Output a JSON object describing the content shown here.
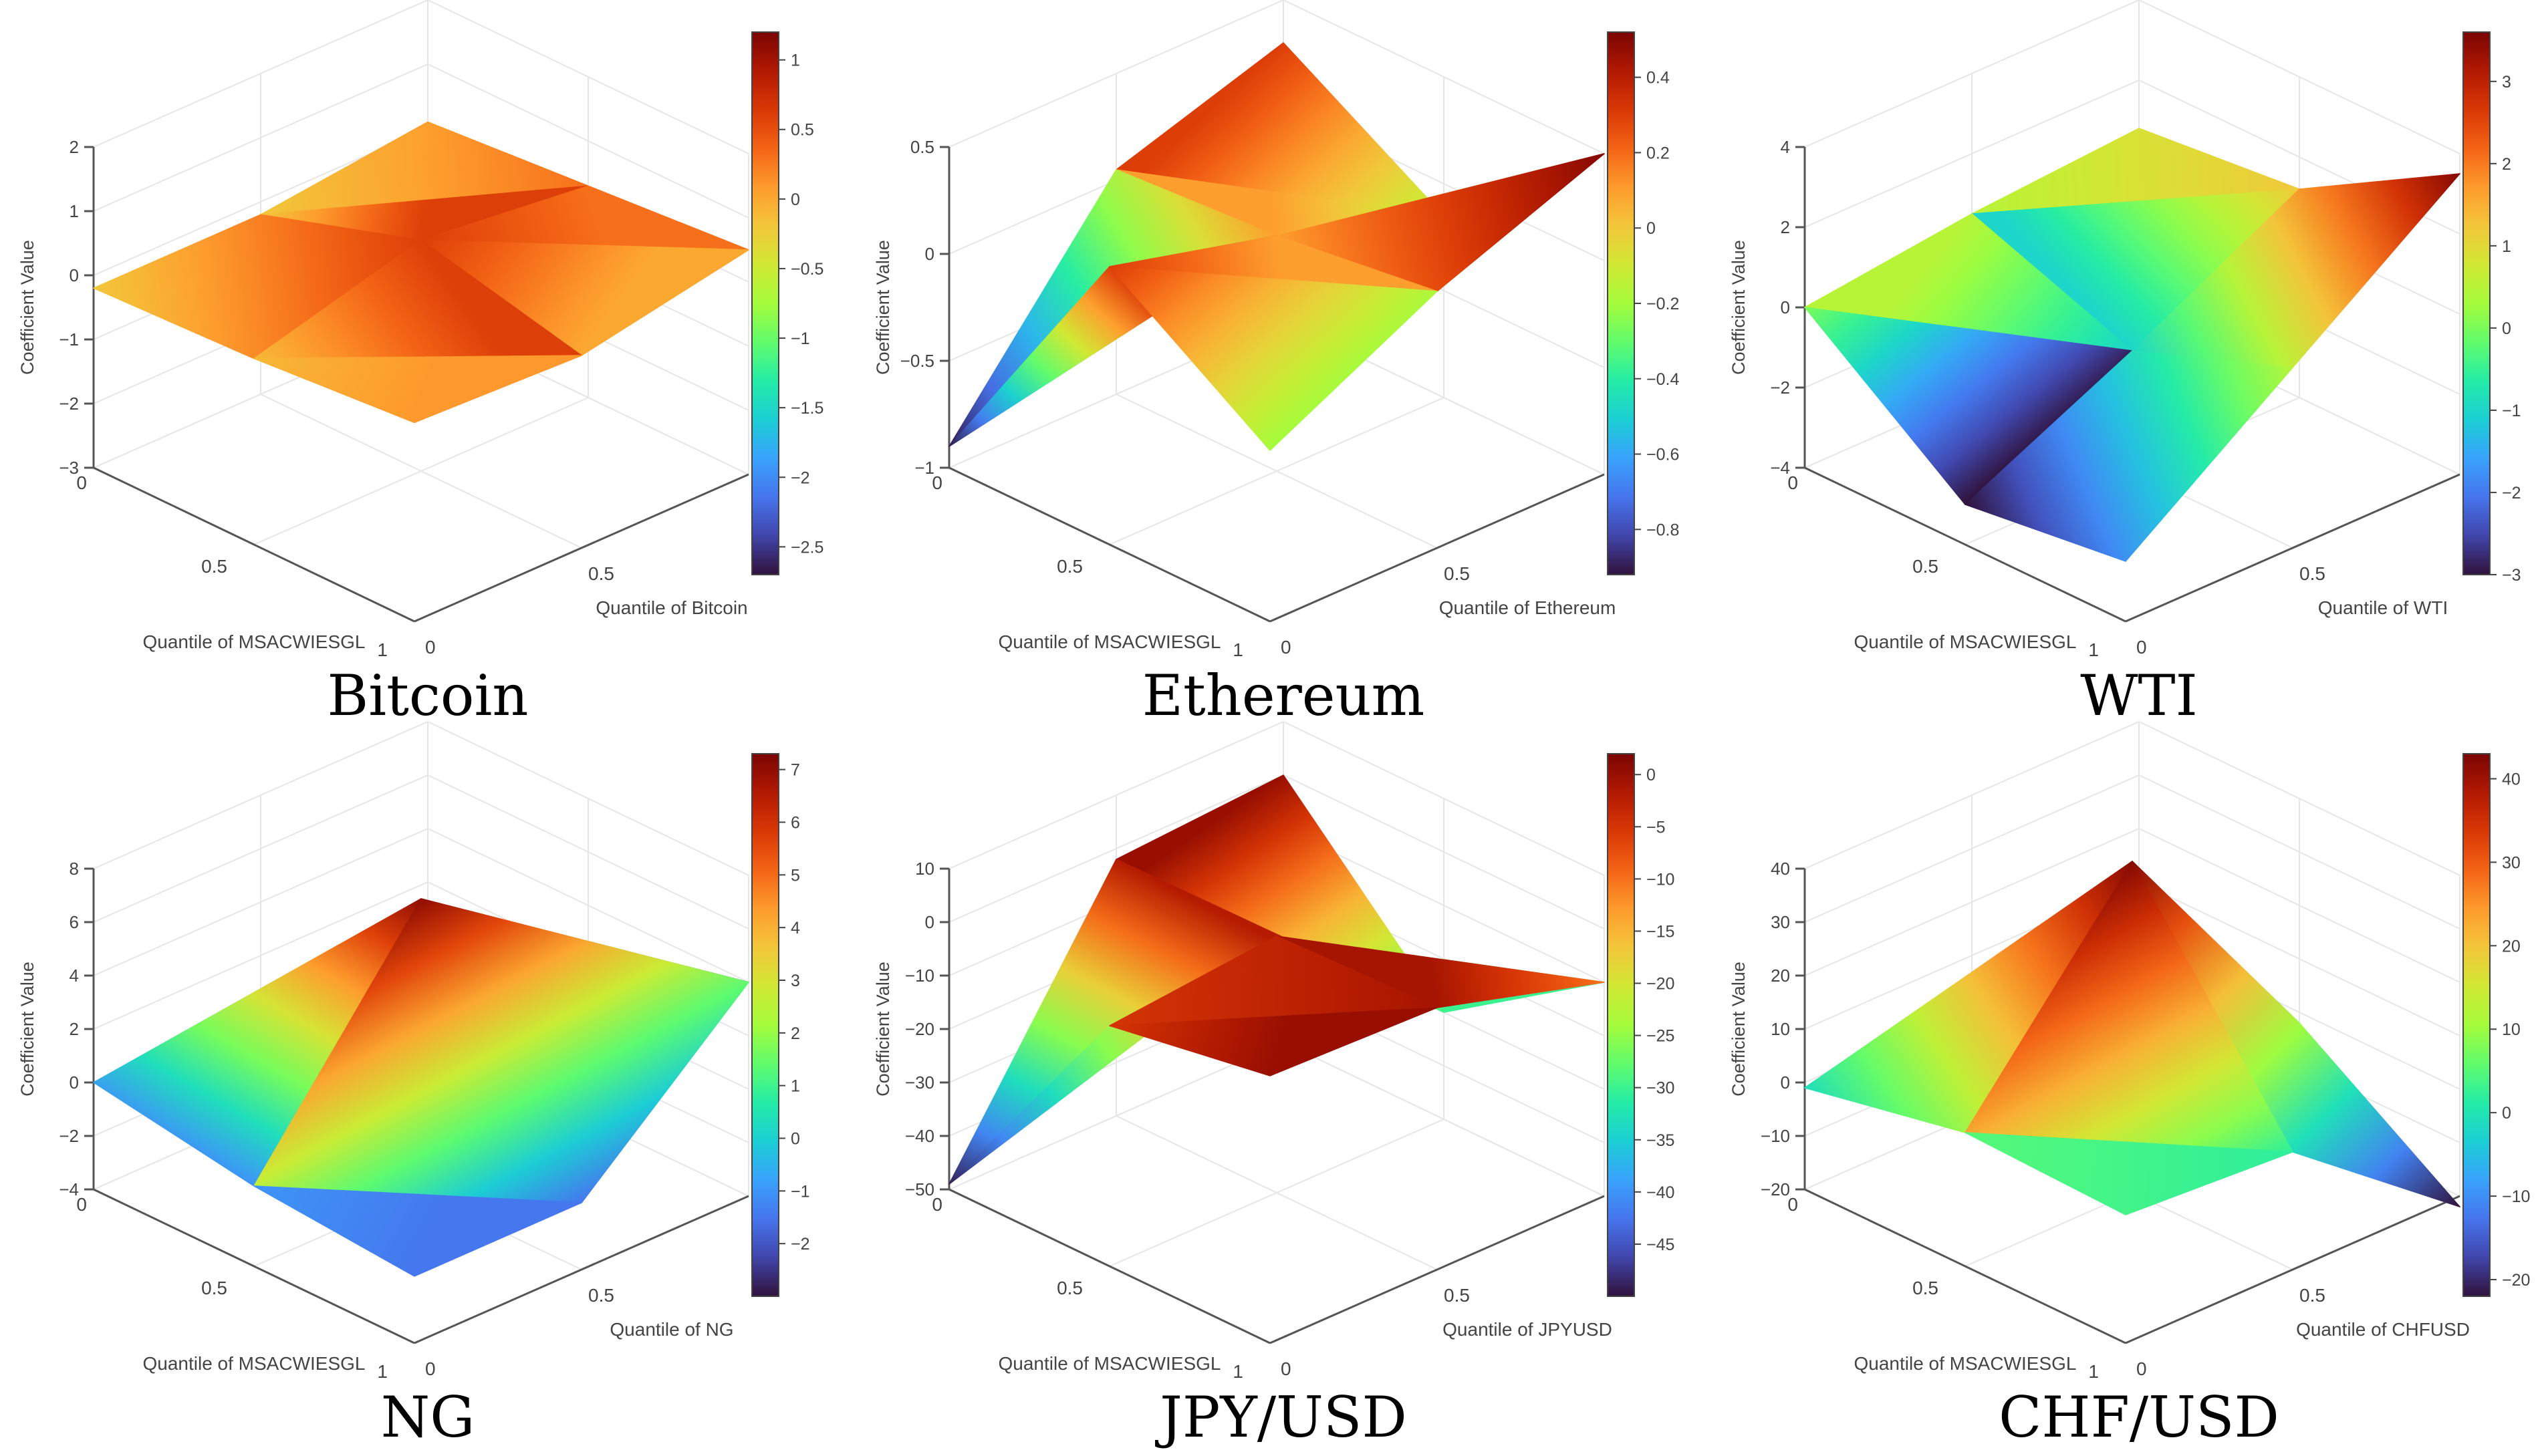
{
  "colorscale": [
    "#30123b",
    "#4145ab",
    "#4675ed",
    "#39a2fc",
    "#1bcfd4",
    "#24eca6",
    "#61fc6c",
    "#a4fc3b",
    "#d1e834",
    "#f3c63a",
    "#fe9b2d",
    "#f36315",
    "#d93806",
    "#b11901",
    "#7a0403"
  ],
  "chart_data": [
    {
      "type": "surface",
      "caption": "Bitcoin",
      "zlabel": "Coefficient Value",
      "xlabel": "Quantile of MSACWIESGL",
      "ylabel": "Quantile of Bitcoin",
      "x_ticks": [
        "0",
        "0.5",
        "1"
      ],
      "y_ticks": [
        "0",
        "0.5",
        "1"
      ],
      "z_range": [
        -3,
        2
      ],
      "z_ticks": [
        {
          "v": 2,
          "t": "2"
        },
        {
          "v": 1,
          "t": "1"
        },
        {
          "v": 0,
          "t": "0"
        },
        {
          "v": -1,
          "t": "−1"
        },
        {
          "v": -2,
          "t": "−2"
        },
        {
          "v": -3,
          "t": "−3"
        }
      ],
      "z": [
        [
          -0.2,
          -0.2,
          0.1
        ],
        [
          -0.1,
          0.6,
          0.3
        ],
        [
          0.1,
          0.0,
          0.5
        ]
      ],
      "cbar_range": [
        -2.7,
        1.2
      ],
      "cbar_ticks": [
        {
          "v": 1,
          "t": "1"
        },
        {
          "v": 0.5,
          "t": "0.5"
        },
        {
          "v": 0,
          "t": "0"
        },
        {
          "v": -0.5,
          "t": "−0.5"
        },
        {
          "v": -1,
          "t": "−1"
        },
        {
          "v": -1.5,
          "t": "−1.5"
        },
        {
          "v": -2,
          "t": "−2"
        },
        {
          "v": -2.5,
          "t": "−2.5"
        }
      ]
    },
    {
      "type": "surface",
      "caption": "Ethereum",
      "zlabel": "Coefficient Value",
      "xlabel": "Quantile of MSACWIESGL",
      "ylabel": "Quantile of Ethereum",
      "x_ticks": [
        "0",
        "0.5",
        "1"
      ],
      "y_ticks": [
        "0",
        "0.5",
        "1"
      ],
      "z_range": [
        -1,
        0.5
      ],
      "z_ticks": [
        {
          "v": 0.5,
          "t": "0.5"
        },
        {
          "v": 0,
          "t": "0"
        },
        {
          "v": -0.5,
          "t": "−0.5"
        },
        {
          "v": -1,
          "t": "−1"
        }
      ],
      "z": [
        [
          -0.9,
          0.05,
          0.3
        ],
        [
          0.3,
          0.1,
          -0.15
        ],
        [
          -0.2,
          0.2,
          0.5
        ]
      ],
      "cbar_range": [
        -0.92,
        0.52
      ],
      "cbar_ticks": [
        {
          "v": 0.4,
          "t": "0.4"
        },
        {
          "v": 0.2,
          "t": "0.2"
        },
        {
          "v": 0,
          "t": "0"
        },
        {
          "v": -0.2,
          "t": "−0.2"
        },
        {
          "v": -0.4,
          "t": "−0.4"
        },
        {
          "v": -0.6,
          "t": "−0.6"
        },
        {
          "v": -0.8,
          "t": "−0.8"
        }
      ]
    },
    {
      "type": "surface",
      "caption": "WTI",
      "zlabel": "Coefficient Value",
      "xlabel": "Quantile of MSACWIESGL",
      "ylabel": "Quantile of WTI",
      "x_ticks": [
        "0",
        "0.5",
        "1"
      ],
      "y_ticks": [
        "0",
        "0.5",
        "1"
      ],
      "z_range": [
        -4,
        4
      ],
      "z_ticks": [
        {
          "v": 4,
          "t": "4"
        },
        {
          "v": 2,
          "t": "2"
        },
        {
          "v": 0,
          "t": "0"
        },
        {
          "v": -2,
          "t": "−2"
        },
        {
          "v": -4,
          "t": "−4"
        }
      ],
      "z": [
        [
          0.0,
          0.5,
          0.8
        ],
        [
          -3.0,
          -1.0,
          1.2
        ],
        [
          -2.5,
          0.5,
          3.5
        ]
      ],
      "cbar_range": [
        -3.0,
        3.6
      ],
      "cbar_ticks": [
        {
          "v": 3,
          "t": "3"
        },
        {
          "v": 2,
          "t": "2"
        },
        {
          "v": 1,
          "t": "1"
        },
        {
          "v": 0,
          "t": "0"
        },
        {
          "v": -1,
          "t": "−1"
        },
        {
          "v": -2,
          "t": "−2"
        },
        {
          "v": -3,
          "t": "−3"
        }
      ]
    },
    {
      "type": "surface",
      "caption": "NG",
      "zlabel": "Coefficient Value",
      "xlabel": "Quantile of MSACWIESGL",
      "ylabel": "Quantile of NG",
      "x_ticks": [
        "0",
        "0.5",
        "1"
      ],
      "y_ticks": [
        "0",
        "0.5",
        "1"
      ],
      "z_range": [
        -4,
        8
      ],
      "z_ticks": [
        {
          "v": 8,
          "t": "8"
        },
        {
          "v": 6,
          "t": "6"
        },
        {
          "v": 4,
          "t": "4"
        },
        {
          "v": 2,
          "t": "2"
        },
        {
          "v": 0,
          "t": "0"
        },
        {
          "v": -2,
          "t": "−2"
        },
        {
          "v": -4,
          "t": "−4"
        }
      ],
      "z": [
        [
          0.0,
          -0.5,
          -0.5
        ],
        [
          -1.0,
          7.0,
          -3.0
        ],
        [
          -1.5,
          -1.5,
          4.0
        ]
      ],
      "cbar_range": [
        -3.0,
        7.3
      ],
      "cbar_ticks": [
        {
          "v": 7,
          "t": "7"
        },
        {
          "v": 6,
          "t": "6"
        },
        {
          "v": 5,
          "t": "5"
        },
        {
          "v": 4,
          "t": "4"
        },
        {
          "v": 3,
          "t": "3"
        },
        {
          "v": 2,
          "t": "2"
        },
        {
          "v": 1,
          "t": "1"
        },
        {
          "v": 0,
          "t": "0"
        },
        {
          "v": -1,
          "t": "−1"
        },
        {
          "v": -2,
          "t": "−2"
        }
      ]
    },
    {
      "type": "surface",
      "caption": "JPY/USD",
      "zlabel": "Coefficient Value",
      "xlabel": "Quantile of MSACWIESGL",
      "ylabel": "Quantile of JPYUSD",
      "x_ticks": [
        "0",
        "0.5",
        "1"
      ],
      "y_ticks": [
        "0",
        "0.5",
        "1"
      ],
      "z_range": [
        -50,
        10
      ],
      "z_ticks": [
        {
          "v": 10,
          "t": "10"
        },
        {
          "v": 0,
          "t": "0"
        },
        {
          "v": -10,
          "t": "−10"
        },
        {
          "v": -20,
          "t": "−20"
        },
        {
          "v": -30,
          "t": "−30"
        },
        {
          "v": -40,
          "t": "−40"
        },
        {
          "v": -50,
          "t": "−50"
        }
      ],
      "z": [
        [
          -49,
          -2,
          0
        ],
        [
          -5,
          -2,
          -30
        ],
        [
          0,
          -1,
          -10
        ]
      ],
      "cbar_range": [
        -50,
        2
      ],
      "cbar_ticks": [
        {
          "v": 0,
          "t": "0"
        },
        {
          "v": -5,
          "t": "−5"
        },
        {
          "v": -10,
          "t": "−10"
        },
        {
          "v": -15,
          "t": "−15"
        },
        {
          "v": -20,
          "t": "−20"
        },
        {
          "v": -25,
          "t": "−25"
        },
        {
          "v": -30,
          "t": "−30"
        },
        {
          "v": -35,
          "t": "−35"
        },
        {
          "v": -40,
          "t": "−40"
        },
        {
          "v": -45,
          "t": "−45"
        }
      ]
    },
    {
      "type": "surface",
      "caption": "CHF/USD",
      "zlabel": "Coefficient Value",
      "xlabel": "Quantile of MSACWIESGL",
      "ylabel": "Quantile of CHFUSD",
      "x_ticks": [
        "0",
        "0.5",
        "1"
      ],
      "y_ticks": [
        "0",
        "0.5",
        "1"
      ],
      "z_range": [
        -20,
        40
      ],
      "z_ticks": [
        {
          "v": 40,
          "t": "40"
        },
        {
          "v": 30,
          "t": "30"
        },
        {
          "v": 20,
          "t": "20"
        },
        {
          "v": 10,
          "t": "10"
        },
        {
          "v": 0,
          "t": "0"
        },
        {
          "v": -10,
          "t": "−10"
        },
        {
          "v": -20,
          "t": "−20"
        }
      ],
      "z": [
        [
          -1,
          4,
          0
        ],
        [
          5,
          42,
          -2
        ],
        [
          4,
          2,
          -22
        ]
      ],
      "cbar_range": [
        -22,
        43
      ],
      "cbar_ticks": [
        {
          "v": 40,
          "t": "40"
        },
        {
          "v": 30,
          "t": "30"
        },
        {
          "v": 20,
          "t": "20"
        },
        {
          "v": 10,
          "t": "10"
        },
        {
          "v": 0,
          "t": "0"
        },
        {
          "v": -10,
          "t": "−10"
        },
        {
          "v": -20,
          "t": "−20"
        }
      ]
    }
  ]
}
